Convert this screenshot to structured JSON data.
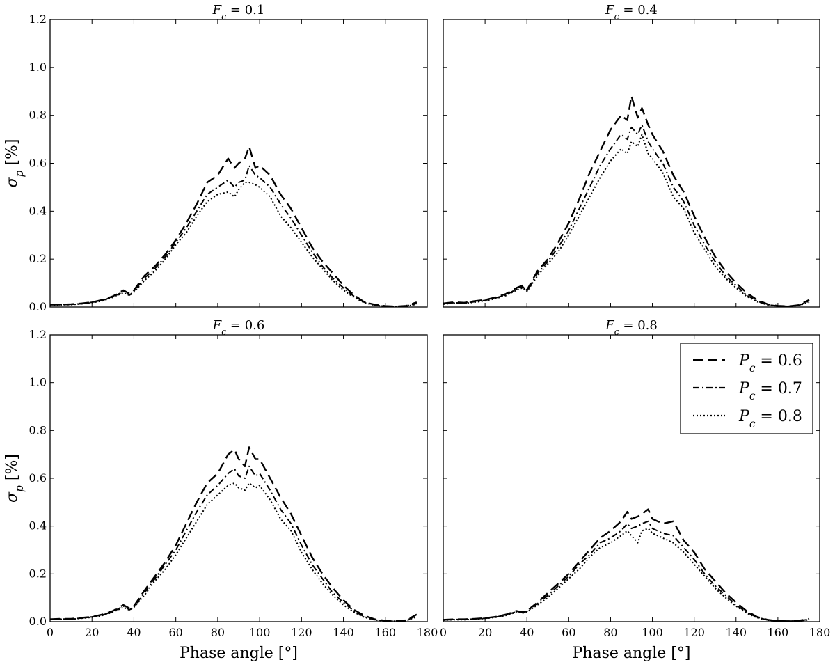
{
  "chart_data": {
    "type": "line",
    "layout": "2x2 grid with shared axes",
    "xlabel": "Phase angle [°]",
    "ylabel": "σ_p [%]",
    "xlim": [
      0,
      180
    ],
    "ylim": [
      0,
      1.2
    ],
    "xticks": [
      0,
      20,
      40,
      60,
      80,
      100,
      120,
      140,
      160,
      180
    ],
    "yticks": [
      0.0,
      0.2,
      0.4,
      0.6,
      0.8,
      1.0,
      1.2
    ],
    "ytick_labels": [
      "0.0",
      "0.2",
      "0.4",
      "0.6",
      "0.8",
      "1.0",
      "1.2"
    ],
    "legend": {
      "panel_index": 3,
      "location": "upper right",
      "entries": [
        "P_c = 0.6",
        "P_c = 0.7",
        "P_c = 0.8"
      ]
    },
    "x": [
      0,
      5,
      10,
      15,
      20,
      25,
      30,
      35,
      38,
      40,
      45,
      50,
      55,
      60,
      65,
      70,
      75,
      80,
      85,
      88,
      90,
      93,
      95,
      98,
      100,
      105,
      110,
      115,
      120,
      125,
      130,
      135,
      140,
      145,
      150,
      155,
      160,
      165,
      170,
      175
    ],
    "panels": [
      {
        "title": "F_c = 0.1",
        "series": [
          {
            "name": "P_c = 0.6",
            "style": "dashed",
            "values": [
              0.01,
              0.01,
              0.012,
              0.015,
              0.02,
              0.03,
              0.045,
              0.07,
              0.055,
              0.07,
              0.13,
              0.17,
              0.22,
              0.28,
              0.35,
              0.43,
              0.52,
              0.55,
              0.62,
              0.58,
              0.6,
              0.62,
              0.67,
              0.58,
              0.59,
              0.55,
              0.47,
              0.41,
              0.33,
              0.25,
              0.19,
              0.14,
              0.09,
              0.05,
              0.02,
              0.01,
              0.004,
              0.002,
              0.005,
              0.02
            ]
          },
          {
            "name": "P_c = 0.7",
            "style": "dashdot",
            "values": [
              0.01,
              0.01,
              0.011,
              0.014,
              0.02,
              0.028,
              0.042,
              0.065,
              0.05,
              0.065,
              0.12,
              0.16,
              0.21,
              0.27,
              0.33,
              0.4,
              0.47,
              0.5,
              0.53,
              0.5,
              0.52,
              0.53,
              0.59,
              0.55,
              0.54,
              0.5,
              0.43,
              0.37,
              0.3,
              0.23,
              0.17,
              0.12,
              0.08,
              0.045,
              0.02,
              0.008,
              0.003,
              0.002,
              0.004,
              0.015
            ]
          },
          {
            "name": "P_c = 0.8",
            "style": "dotted",
            "values": [
              0.008,
              0.009,
              0.01,
              0.013,
              0.018,
              0.026,
              0.04,
              0.06,
              0.048,
              0.062,
              0.11,
              0.15,
              0.2,
              0.26,
              0.31,
              0.38,
              0.44,
              0.47,
              0.48,
              0.46,
              0.49,
              0.52,
              0.52,
              0.51,
              0.5,
              0.46,
              0.38,
              0.33,
              0.27,
              0.21,
              0.16,
              0.11,
              0.07,
              0.04,
              0.018,
              0.007,
              0.003,
              0.002,
              0.003,
              0.012
            ]
          }
        ]
      },
      {
        "title": "F_c = 0.4",
        "series": [
          {
            "name": "P_c = 0.6",
            "style": "dashed",
            "values": [
              0.015,
              0.02,
              0.018,
              0.025,
              0.03,
              0.04,
              0.055,
              0.08,
              0.09,
              0.07,
              0.15,
              0.2,
              0.27,
              0.35,
              0.45,
              0.56,
              0.65,
              0.74,
              0.8,
              0.78,
              0.88,
              0.79,
              0.83,
              0.76,
              0.72,
              0.65,
              0.55,
              0.48,
              0.38,
              0.29,
              0.21,
              0.15,
              0.1,
              0.06,
              0.03,
              0.012,
              0.005,
              0.003,
              0.008,
              0.03
            ]
          },
          {
            "name": "P_c = 0.7",
            "style": "dashdot",
            "values": [
              0.014,
              0.018,
              0.016,
              0.022,
              0.028,
              0.038,
              0.05,
              0.075,
              0.085,
              0.066,
              0.14,
              0.19,
              0.25,
              0.32,
              0.41,
              0.5,
              0.59,
              0.66,
              0.72,
              0.7,
              0.75,
              0.72,
              0.76,
              0.69,
              0.66,
              0.6,
              0.5,
              0.44,
              0.34,
              0.26,
              0.19,
              0.13,
              0.09,
              0.05,
              0.025,
              0.01,
              0.004,
              0.003,
              0.007,
              0.025
            ]
          },
          {
            "name": "P_c = 0.8",
            "style": "dotted",
            "values": [
              0.012,
              0.016,
              0.015,
              0.02,
              0.026,
              0.035,
              0.048,
              0.07,
              0.08,
              0.064,
              0.13,
              0.18,
              0.23,
              0.3,
              0.38,
              0.46,
              0.54,
              0.61,
              0.66,
              0.64,
              0.69,
              0.67,
              0.72,
              0.64,
              0.62,
              0.56,
              0.46,
              0.41,
              0.31,
              0.24,
              0.17,
              0.12,
              0.08,
              0.045,
              0.022,
              0.009,
              0.004,
              0.003,
              0.006,
              0.02
            ]
          }
        ]
      },
      {
        "title": "F_c = 0.6",
        "series": [
          {
            "name": "P_c = 0.6",
            "style": "dashed",
            "values": [
              0.01,
              0.012,
              0.012,
              0.016,
              0.02,
              0.03,
              0.045,
              0.07,
              0.055,
              0.065,
              0.13,
              0.19,
              0.25,
              0.32,
              0.41,
              0.5,
              0.58,
              0.62,
              0.7,
              0.72,
              0.68,
              0.65,
              0.73,
              0.68,
              0.68,
              0.6,
              0.52,
              0.45,
              0.36,
              0.27,
              0.2,
              0.14,
              0.09,
              0.05,
              0.025,
              0.01,
              0.004,
              0.002,
              0.006,
              0.03
            ]
          },
          {
            "name": "P_c = 0.7",
            "style": "dashdot",
            "values": [
              0.01,
              0.011,
              0.011,
              0.015,
              0.02,
              0.028,
              0.042,
              0.065,
              0.05,
              0.062,
              0.12,
              0.18,
              0.24,
              0.3,
              0.38,
              0.46,
              0.53,
              0.57,
              0.62,
              0.64,
              0.61,
              0.6,
              0.65,
              0.61,
              0.62,
              0.55,
              0.47,
              0.41,
              0.32,
              0.24,
              0.18,
              0.12,
              0.08,
              0.045,
              0.02,
              0.008,
              0.003,
              0.002,
              0.005,
              0.025
            ]
          },
          {
            "name": "P_c = 0.8",
            "style": "dotted",
            "values": [
              0.009,
              0.01,
              0.01,
              0.014,
              0.018,
              0.026,
              0.04,
              0.06,
              0.048,
              0.06,
              0.11,
              0.17,
              0.22,
              0.28,
              0.35,
              0.42,
              0.49,
              0.53,
              0.57,
              0.58,
              0.56,
              0.55,
              0.58,
              0.56,
              0.57,
              0.51,
              0.43,
              0.38,
              0.29,
              0.22,
              0.16,
              0.11,
              0.07,
              0.04,
              0.018,
              0.007,
              0.003,
              0.002,
              0.004,
              0.02
            ]
          }
        ]
      },
      {
        "title": "F_c = 0.8",
        "series": [
          {
            "name": "P_c = 0.6",
            "style": "dashed",
            "values": [
              0.008,
              0.01,
              0.01,
              0.012,
              0.015,
              0.02,
              0.03,
              0.045,
              0.04,
              0.045,
              0.08,
              0.12,
              0.16,
              0.2,
              0.25,
              0.3,
              0.35,
              0.38,
              0.42,
              0.46,
              0.43,
              0.44,
              0.45,
              0.47,
              0.43,
              0.41,
              0.42,
              0.34,
              0.29,
              0.22,
              0.17,
              0.12,
              0.08,
              0.045,
              0.02,
              0.008,
              0.003,
              0.002,
              0.004,
              0.012
            ]
          },
          {
            "name": "P_c = 0.7",
            "style": "dashdot",
            "values": [
              0.007,
              0.009,
              0.009,
              0.011,
              0.014,
              0.019,
              0.028,
              0.042,
              0.038,
              0.043,
              0.075,
              0.11,
              0.15,
              0.19,
              0.24,
              0.28,
              0.33,
              0.35,
              0.38,
              0.41,
              0.39,
              0.4,
              0.41,
              0.42,
              0.39,
              0.37,
              0.36,
              0.31,
              0.26,
              0.2,
              0.15,
              0.11,
              0.07,
              0.04,
              0.018,
              0.007,
              0.003,
              0.002,
              0.003,
              0.01
            ]
          },
          {
            "name": "P_c = 0.8",
            "style": "dotted",
            "values": [
              0.006,
              0.008,
              0.008,
              0.01,
              0.013,
              0.018,
              0.026,
              0.04,
              0.036,
              0.04,
              0.07,
              0.1,
              0.14,
              0.18,
              0.22,
              0.27,
              0.31,
              0.33,
              0.36,
              0.38,
              0.36,
              0.33,
              0.38,
              0.39,
              0.37,
              0.35,
              0.33,
              0.29,
              0.24,
              0.19,
              0.14,
              0.1,
              0.065,
              0.036,
              0.016,
              0.006,
              0.003,
              0.002,
              0.003,
              0.008
            ]
          }
        ]
      }
    ]
  }
}
